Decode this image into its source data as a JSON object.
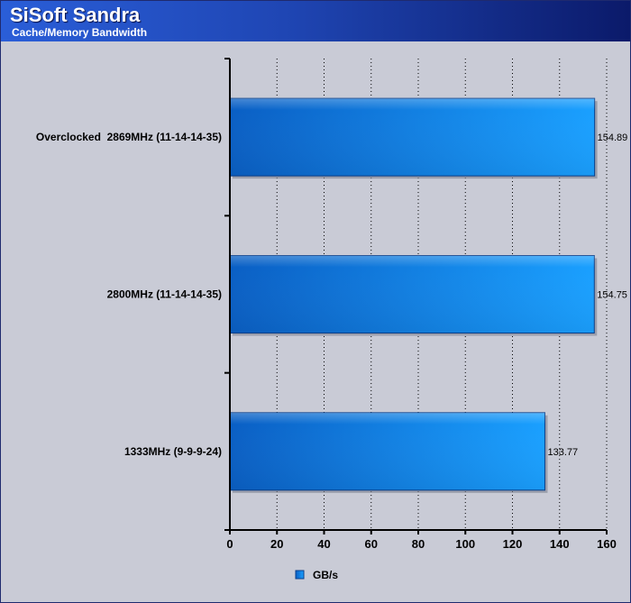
{
  "header": {
    "title": "SiSoft Sandra",
    "subtitle": "Cache/Memory Bandwidth"
  },
  "colors": {
    "bar_dark": "#0a5fc4",
    "bar_light": "#1aa0ff",
    "header_start": "#2a5ed8",
    "header_end": "#0b1a6a"
  },
  "chart_data": {
    "type": "bar",
    "orientation": "horizontal",
    "categories": [
      "Overclocked  2869MHz (11-14-14-35)",
      "2800MHz (11-14-14-35)",
      "1333MHz (9-9-9-24)"
    ],
    "series": [
      {
        "name": "GB/s",
        "values": [
          154.89,
          154.75,
          133.77
        ]
      }
    ],
    "value_labels": [
      "154.89",
      "154.75",
      "133.77"
    ],
    "xlim": [
      0,
      160
    ],
    "xticks": [
      0,
      20,
      40,
      60,
      80,
      100,
      120,
      140,
      160
    ],
    "grid": "vertical dotted",
    "legend": {
      "position": "bottom",
      "label": "GB/s"
    },
    "title": "SiSoft Sandra",
    "subtitle": "Cache/Memory Bandwidth"
  }
}
